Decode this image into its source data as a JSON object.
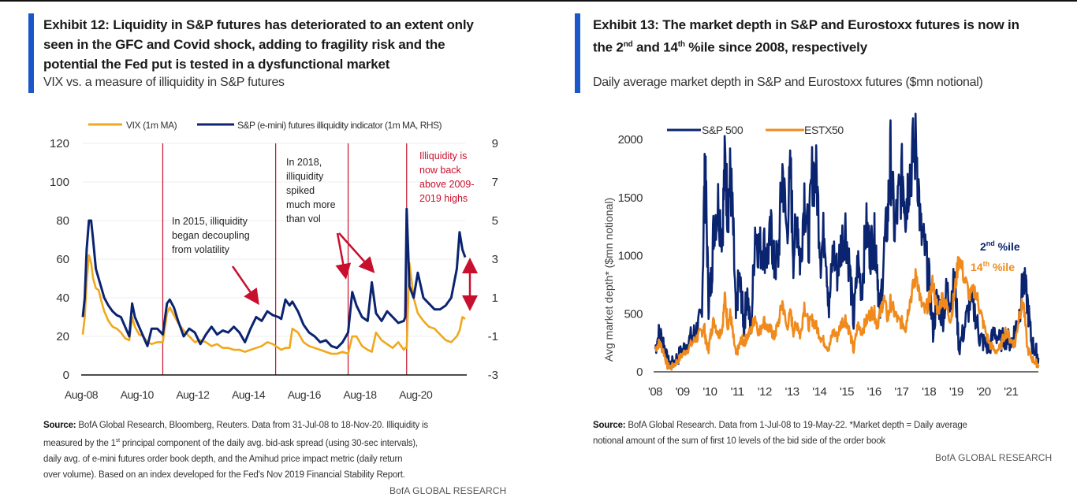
{
  "exhibit12": {
    "title_line1": "Exhibit 12: Liquidity in S&P futures has deteriorated to an extent only",
    "title_line2": "seen in the GFC and Covid shock, adding to fragility risk and the",
    "title_line3": "potential the Fed put is tested in a dysfunctional market",
    "subtitle": "VIX vs. a measure of illiquidity in S&P futures",
    "source_label": "Source:",
    "source_text_1": " BofA Global Research, Bloomberg, Reuters. Data from 31-Jul-08 to 18-Nov-20. Illiquidity is",
    "source_text_2a": "measured by the 1",
    "source_text_2sup": "st",
    "source_text_2b": " principal component  of the daily avg. bid-ask spread (using 30-sec intervals),",
    "source_text_3": "daily avg. of e-mini futures order book depth, and the Amihud price impact metric (daily return",
    "source_text_4": "over volume). Based on an index developed for the Fed's Nov 2019 Financial Stability Report.",
    "credit": "BofA GLOBAL RESEARCH"
  },
  "exhibit13": {
    "title_line1": "Exhibit 13: The market depth in S&P and Eurostoxx futures is now in",
    "title_line2a": "the 2",
    "title_sup1": "nd",
    "title_line2b": " and 14",
    "title_sup2": "th",
    "title_line2c": " %ile since 2008, respectively",
    "subtitle": "Daily average market depth in S&P and Eurostoxx futures ($mn notional)",
    "source_label": "Source:",
    "source_text_1": " BofA Global Research. Data from 1-Jul-08 to 19-May-22. *Market depth = Daily average",
    "source_text_2": "notional amount of the sum of first 10 levels of the bid side of the order book",
    "credit": "BofA GLOBAL RESEARCH"
  },
  "chart_data": [
    {
      "type": "line",
      "title": "VIX vs. a measure of illiquidity in S&P futures",
      "xlabel": "",
      "ylabel": "",
      "y2label": "",
      "x_ticks": [
        "Aug-08",
        "Aug-10",
        "Aug-12",
        "Aug-14",
        "Aug-16",
        "Aug-18",
        "Aug-20"
      ],
      "x_range": [
        2008.58,
        2022.3
      ],
      "ylim": [
        0,
        120
      ],
      "y_ticks": [
        0,
        20,
        40,
        60,
        80,
        100,
        120
      ],
      "y2lim": [
        -3,
        9
      ],
      "y2_ticks": [
        -3,
        -1,
        1,
        3,
        5,
        7,
        9
      ],
      "grid": true,
      "legend_position": "top",
      "colors": {
        "vix": "#f0a81c",
        "illiq": "#0b2470",
        "annotation": "#c8102e",
        "vline": "#c8102e"
      },
      "series": [
        {
          "name": "VIX (1m MA)",
          "axis": "left",
          "x": [
            2008.58,
            2008.65,
            2008.72,
            2008.8,
            2008.88,
            2008.95,
            2009.05,
            2009.15,
            2009.25,
            2009.35,
            2009.5,
            2009.65,
            2009.8,
            2009.95,
            2010.1,
            2010.25,
            2010.35,
            2010.45,
            2010.6,
            2010.75,
            2010.9,
            2011.05,
            2011.25,
            2011.45,
            2011.6,
            2011.7,
            2011.85,
            2012.0,
            2012.2,
            2012.4,
            2012.6,
            2012.8,
            2013.0,
            2013.2,
            2013.4,
            2013.6,
            2013.8,
            2014.0,
            2014.2,
            2014.4,
            2014.6,
            2014.8,
            2015.0,
            2015.2,
            2015.4,
            2015.6,
            2015.7,
            2015.85,
            2016.0,
            2016.1,
            2016.3,
            2016.5,
            2016.7,
            2016.9,
            2017.1,
            2017.3,
            2017.5,
            2017.7,
            2017.9,
            2018.1,
            2018.25,
            2018.4,
            2018.6,
            2018.8,
            2018.95,
            2019.1,
            2019.3,
            2019.5,
            2019.7,
            2019.9,
            2020.1,
            2020.15,
            2020.2,
            2020.3,
            2020.45,
            2020.6,
            2020.8,
            2021.0,
            2021.2,
            2021.4,
            2021.6,
            2021.8,
            2022.0,
            2022.1,
            2022.2,
            2022.3
          ],
          "values": [
            21,
            30,
            48,
            62,
            58,
            50,
            45,
            44,
            38,
            33,
            28,
            25,
            24,
            22,
            19,
            18,
            30,
            25,
            21,
            20,
            17,
            16,
            17,
            17,
            32,
            35,
            31,
            27,
            23,
            20,
            17,
            18,
            17,
            15,
            16,
            14,
            14,
            13,
            13,
            12,
            13,
            14,
            15,
            17,
            16,
            14,
            13,
            14,
            14,
            24,
            22,
            17,
            15,
            14,
            13,
            12,
            11,
            11,
            12,
            11,
            20,
            20,
            15,
            13,
            12,
            22,
            18,
            16,
            14,
            17,
            13,
            14,
            14,
            58,
            40,
            32,
            28,
            25,
            24,
            21,
            18,
            17,
            20,
            23,
            30,
            29
          ]
        },
        {
          "name": "S&P (e-mini) futures illiquidity indicator (1m MA, RHS)",
          "axis": "right",
          "x": [
            2008.58,
            2008.65,
            2008.72,
            2008.8,
            2008.88,
            2008.95,
            2009.05,
            2009.15,
            2009.25,
            2009.35,
            2009.5,
            2009.65,
            2009.8,
            2009.95,
            2010.1,
            2010.25,
            2010.35,
            2010.45,
            2010.6,
            2010.75,
            2010.9,
            2011.05,
            2011.25,
            2011.45,
            2011.6,
            2011.7,
            2011.85,
            2012.0,
            2012.2,
            2012.4,
            2012.6,
            2012.8,
            2013.0,
            2013.2,
            2013.4,
            2013.6,
            2013.8,
            2014.0,
            2014.2,
            2014.4,
            2014.6,
            2014.8,
            2015.0,
            2015.2,
            2015.4,
            2015.6,
            2015.7,
            2015.85,
            2016.0,
            2016.1,
            2016.3,
            2016.5,
            2016.7,
            2016.9,
            2017.1,
            2017.3,
            2017.5,
            2017.7,
            2017.9,
            2018.1,
            2018.25,
            2018.4,
            2018.6,
            2018.8,
            2018.95,
            2019.1,
            2019.3,
            2019.5,
            2019.7,
            2019.9,
            2020.1,
            2020.15,
            2020.2,
            2020.3,
            2020.45,
            2020.6,
            2020.8,
            2021.0,
            2021.2,
            2021.4,
            2021.6,
            2021.8,
            2022.0,
            2022.1,
            2022.2,
            2022.3
          ],
          "values": [
            0.0,
            1.0,
            3.5,
            5.0,
            5.0,
            4.0,
            2.5,
            2.0,
            1.5,
            1.0,
            0.6,
            0.3,
            0.1,
            0.0,
            -0.5,
            -1.0,
            0.7,
            0.0,
            -0.5,
            -1.0,
            -1.5,
            -0.6,
            -0.6,
            -0.9,
            0.7,
            0.9,
            0.5,
            -0.2,
            -1.0,
            -0.6,
            -0.8,
            -1.4,
            -0.9,
            -0.5,
            -0.9,
            -0.7,
            -0.8,
            -0.5,
            -0.8,
            -1.3,
            -0.6,
            0.0,
            -0.2,
            0.3,
            0.1,
            0.0,
            -0.1,
            0.9,
            0.6,
            0.8,
            0.3,
            -0.4,
            -0.8,
            -1.0,
            -1.3,
            -1.2,
            -1.5,
            -1.6,
            -1.3,
            -0.8,
            1.3,
            0.6,
            0.0,
            -0.2,
            1.8,
            0.2,
            -0.2,
            0.3,
            0.0,
            -0.3,
            -0.2,
            0.0,
            5.6,
            1.6,
            1.0,
            2.3,
            1.0,
            0.7,
            0.4,
            0.4,
            0.6,
            1.0,
            2.5,
            4.4,
            3.5,
            3.1
          ]
        }
      ],
      "vertical_markers": [
        2011.45,
        2015.5,
        2018.1,
        2020.2
      ],
      "annotations": [
        {
          "text_lines": [
            "In 2015, illiquidity",
            "began decoupling",
            "from volatility"
          ],
          "color": "#222222"
        },
        {
          "text_lines": [
            "In 2018,",
            "illiquidity",
            "spiked",
            "much more",
            "than vol"
          ],
          "color": "#222222"
        },
        {
          "text_lines": [
            "Illiquidity is",
            "now back",
            "above 2009-",
            "2019 highs"
          ],
          "color": "#c8102e"
        }
      ]
    },
    {
      "type": "line",
      "title": "Daily average market depth in S&P and Eurostoxx futures ($mn notional)",
      "xlabel": "",
      "ylabel": "Avg market depth* ($mn notional)",
      "x_ticks": [
        "'08",
        "'09",
        "'10",
        "'11",
        "'12",
        "'13",
        "'14",
        "'15",
        "'16",
        "'17",
        "'18",
        "'19",
        "'20",
        "'21"
      ],
      "x_range": [
        2008.0,
        2022.0
      ],
      "ylim": [
        0,
        2000
      ],
      "y_ticks": [
        0,
        500,
        1000,
        1500,
        2000
      ],
      "grid": false,
      "legend_position": "top-left",
      "colors": {
        "sp500": "#0b2470",
        "estx50": "#f08a1c"
      },
      "series": [
        {
          "name": "S&P 500",
          "x": [
            2008.0,
            2008.15,
            2008.3,
            2008.45,
            2008.6,
            2008.8,
            2009.0,
            2009.2,
            2009.4,
            2009.55,
            2009.7,
            2009.8,
            2009.85,
            2009.95,
            2010.05,
            2010.15,
            2010.3,
            2010.45,
            2010.55,
            2010.65,
            2010.75,
            2010.85,
            2010.95,
            2011.05,
            2011.15,
            2011.25,
            2011.35,
            2011.5,
            2011.65,
            2011.8,
            2011.95,
            2012.1,
            2012.25,
            2012.35,
            2012.5,
            2012.65,
            2012.8,
            2012.95,
            2013.05,
            2013.2,
            2013.3,
            2013.45,
            2013.6,
            2013.75,
            2013.9,
            2014.05,
            2014.2,
            2014.35,
            2014.5,
            2014.65,
            2014.8,
            2014.95,
            2015.1,
            2015.25,
            2015.4,
            2015.55,
            2015.7,
            2015.85,
            2016.0,
            2016.1,
            2016.2,
            2016.35,
            2016.5,
            2016.6,
            2016.75,
            2016.9,
            2017.05,
            2017.15,
            2017.25,
            2017.4,
            2017.55,
            2017.7,
            2017.85,
            2018.0,
            2018.15,
            2018.3,
            2018.5,
            2018.65,
            2018.8,
            2018.95,
            2019.1,
            2019.3,
            2019.5,
            2019.7,
            2019.85,
            2020.0,
            2020.2,
            2020.4,
            2020.6,
            2020.8,
            2021.0,
            2021.15,
            2021.3,
            2021.45,
            2021.6,
            2021.75,
            2021.9,
            2022.0
          ],
          "values": [
            200,
            340,
            260,
            80,
            60,
            120,
            180,
            260,
            320,
            380,
            480,
            1600,
            1550,
            600,
            800,
            1300,
            1450,
            1200,
            1820,
            1400,
            1700,
            1200,
            450,
            800,
            650,
            380,
            720,
            300,
            1250,
            1050,
            1100,
            1000,
            1200,
            900,
            1000,
            1750,
            1200,
            1700,
            1000,
            1350,
            900,
            1550,
            1100,
            1750,
            1650,
            1000,
            1250,
            520,
            1050,
            850,
            1100,
            1250,
            900,
            420,
            950,
            700,
            1250,
            1050,
            1150,
            1000,
            450,
            1000,
            1350,
            1850,
            1200,
            1500,
            1700,
            1400,
            1650,
            1850,
            1950,
            1200,
            1050,
            800,
            350,
            650,
            450,
            700,
            620,
            800,
            200,
            380,
            600,
            500,
            300,
            250,
            200,
            350,
            260,
            300,
            250,
            360,
            500,
            800,
            600,
            250,
            180,
            120
          ]
        },
        {
          "name": "ESTX50",
          "x": [
            2008.0,
            2008.15,
            2008.3,
            2008.45,
            2008.6,
            2008.8,
            2009.0,
            2009.2,
            2009.4,
            2009.55,
            2009.7,
            2009.8,
            2009.85,
            2009.95,
            2010.05,
            2010.15,
            2010.3,
            2010.45,
            2010.55,
            2010.65,
            2010.75,
            2010.85,
            2010.95,
            2011.05,
            2011.15,
            2011.25,
            2011.35,
            2011.5,
            2011.65,
            2011.8,
            2011.95,
            2012.1,
            2012.25,
            2012.35,
            2012.5,
            2012.65,
            2012.8,
            2012.95,
            2013.05,
            2013.2,
            2013.3,
            2013.45,
            2013.6,
            2013.75,
            2013.9,
            2014.05,
            2014.2,
            2014.35,
            2014.5,
            2014.65,
            2014.8,
            2014.95,
            2015.1,
            2015.25,
            2015.4,
            2015.55,
            2015.7,
            2015.85,
            2016.0,
            2016.1,
            2016.2,
            2016.35,
            2016.5,
            2016.6,
            2016.75,
            2016.9,
            2017.05,
            2017.15,
            2017.25,
            2017.4,
            2017.55,
            2017.7,
            2017.85,
            2018.0,
            2018.15,
            2018.3,
            2018.5,
            2018.65,
            2018.8,
            2018.95,
            2019.1,
            2019.3,
            2019.5,
            2019.7,
            2019.85,
            2020.0,
            2020.2,
            2020.4,
            2020.6,
            2020.8,
            2021.0,
            2021.15,
            2021.3,
            2021.45,
            2021.6,
            2021.75,
            2021.9,
            2022.0
          ],
          "values": [
            200,
            250,
            180,
            50,
            40,
            90,
            150,
            200,
            260,
            300,
            350,
            380,
            250,
            200,
            350,
            450,
            320,
            380,
            650,
            400,
            500,
            300,
            150,
            200,
            280,
            250,
            300,
            350,
            480,
            320,
            450,
            380,
            350,
            300,
            420,
            600,
            380,
            500,
            350,
            420,
            300,
            580,
            400,
            450,
            380,
            300,
            250,
            200,
            350,
            300,
            420,
            460,
            350,
            180,
            400,
            350,
            430,
            500,
            520,
            400,
            480,
            640,
            450,
            600,
            500,
            430,
            420,
            380,
            550,
            700,
            850,
            600,
            520,
            600,
            780,
            500,
            650,
            550,
            450,
            700,
            1000,
            800,
            650,
            700,
            550,
            400,
            250,
            180,
            200,
            350,
            270,
            240,
            500,
            600,
            200,
            120,
            80,
            60
          ]
        }
      ],
      "annotations": [
        {
          "text": "2",
          "sup": "nd",
          "suffix": " %ile",
          "color": "#0b2470"
        },
        {
          "text": "14",
          "sup": "th",
          "suffix": " %ile",
          "color": "#f08a1c"
        }
      ]
    }
  ]
}
